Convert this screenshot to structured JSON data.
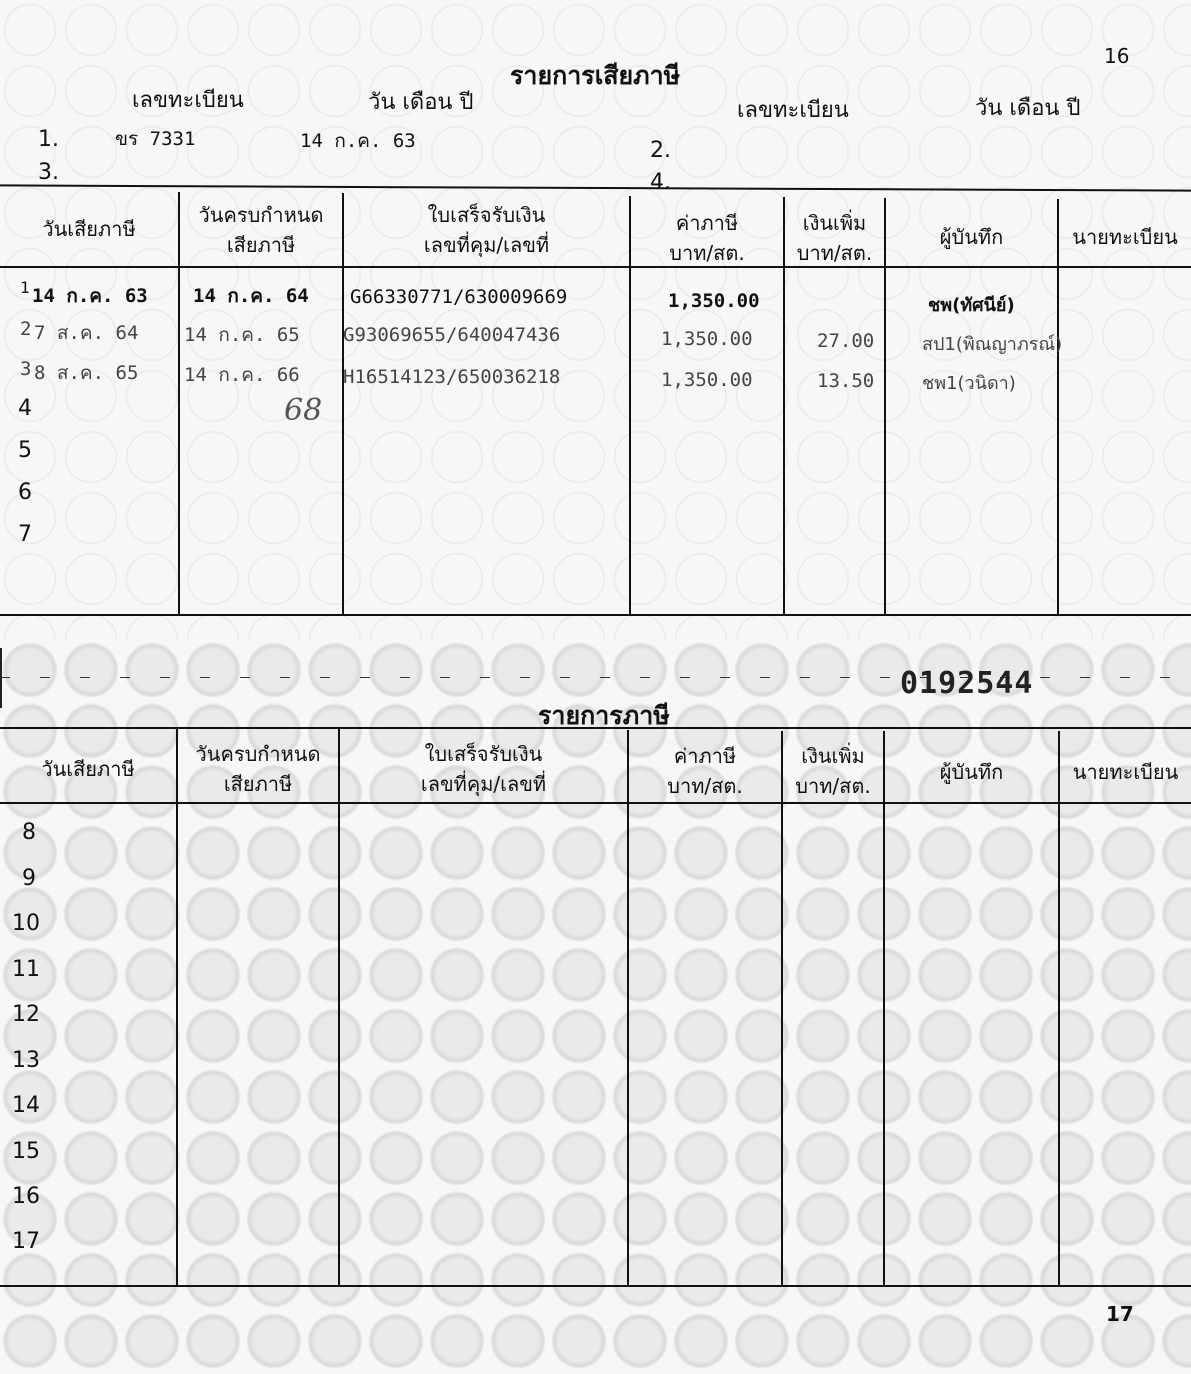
{
  "page_numbers": {
    "top": "16",
    "bottom": "17"
  },
  "section1": {
    "title": "รายการเสียภาษี",
    "plate_label": "เลขทะเบียน",
    "date_label": "วัน เดือน ปี",
    "entries": [
      {
        "num": "1.",
        "plate": "ขร 7331",
        "date": "14 ก.ค. 63"
      },
      {
        "num": "2.",
        "plate": "",
        "date": ""
      },
      {
        "num": "3.",
        "plate": "",
        "date": ""
      },
      {
        "num": "4.",
        "plate": "",
        "date": ""
      }
    ]
  },
  "table_headers": {
    "tax_date": "วันเสียภาษี",
    "due_date_1": "วันครบกำหนด",
    "due_date_2": "เสียภาษี",
    "receipt_1": "ใบเสร็จรับเงิน",
    "receipt_2": "เลขที่คุม/เลขที่",
    "tax_1": "ค่าภาษี",
    "tax_2": "บาท/สต.",
    "surcharge_1": "เงินเพิ่ม",
    "surcharge_2": "บาท/สต.",
    "recorder": "ผู้บันทึก",
    "registrar": "นายทะเบียน"
  },
  "table1": {
    "rows": [
      {
        "num": "1",
        "tax_date": "14 ก.ค. 63",
        "due_date": "14 ก.ค. 64",
        "receipt": "G66330771/630009669",
        "tax": "1,350.00",
        "surcharge": "",
        "recorder": "ชพ(ทัศนีย์)"
      },
      {
        "num": "2",
        "tax_date": "7 ส.ค. 64",
        "due_date": "14 ก.ค. 65",
        "receipt": "G93069655/640047436",
        "tax": "1,350.00",
        "surcharge": "27.00",
        "recorder": "สป1(พิณญาภรณ์)"
      },
      {
        "num": "3",
        "tax_date": "8 ส.ค. 65",
        "due_date": "14 ก.ค. 66",
        "receipt": "H16514123/650036218",
        "tax": "1,350.00",
        "surcharge": "13.50",
        "recorder": "ชพ1(วนิดา)"
      },
      {
        "num": "4"
      },
      {
        "num": "5"
      },
      {
        "num": "6"
      },
      {
        "num": "7"
      }
    ],
    "handwritten_note": "68"
  },
  "serial_stamp": "0192544",
  "section2": {
    "title": "รายการภาษี"
  },
  "table2": {
    "row_numbers": [
      "8",
      "9",
      "10",
      "11",
      "12",
      "13",
      "14",
      "15",
      "16",
      "17"
    ]
  }
}
